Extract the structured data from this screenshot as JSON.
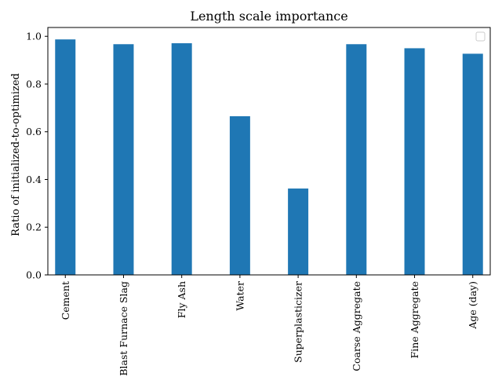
{
  "chart_data": {
    "type": "bar",
    "title": "Length scale importance",
    "xlabel": "",
    "ylabel": "Ratio of initialized-to-optimized",
    "categories": [
      "Cement",
      "Blast Furnace Slag",
      "Fly Ash",
      "Water",
      "Superplasticizer",
      "Coarse Aggregate",
      "Fine Aggregate",
      "Age (day)"
    ],
    "values": [
      0.987,
      0.967,
      0.971,
      0.665,
      0.362,
      0.967,
      0.95,
      0.927
    ],
    "ylim": [
      0,
      1.037
    ],
    "yticks": [
      0.0,
      0.2,
      0.4,
      0.6,
      0.8,
      1.0
    ],
    "ytick_labels": [
      "0.0",
      "0.2",
      "0.4",
      "0.6",
      "0.8",
      "1.0"
    ],
    "bar_color": "#1f77b4",
    "grid": false,
    "legend": "top-right (empty)"
  }
}
